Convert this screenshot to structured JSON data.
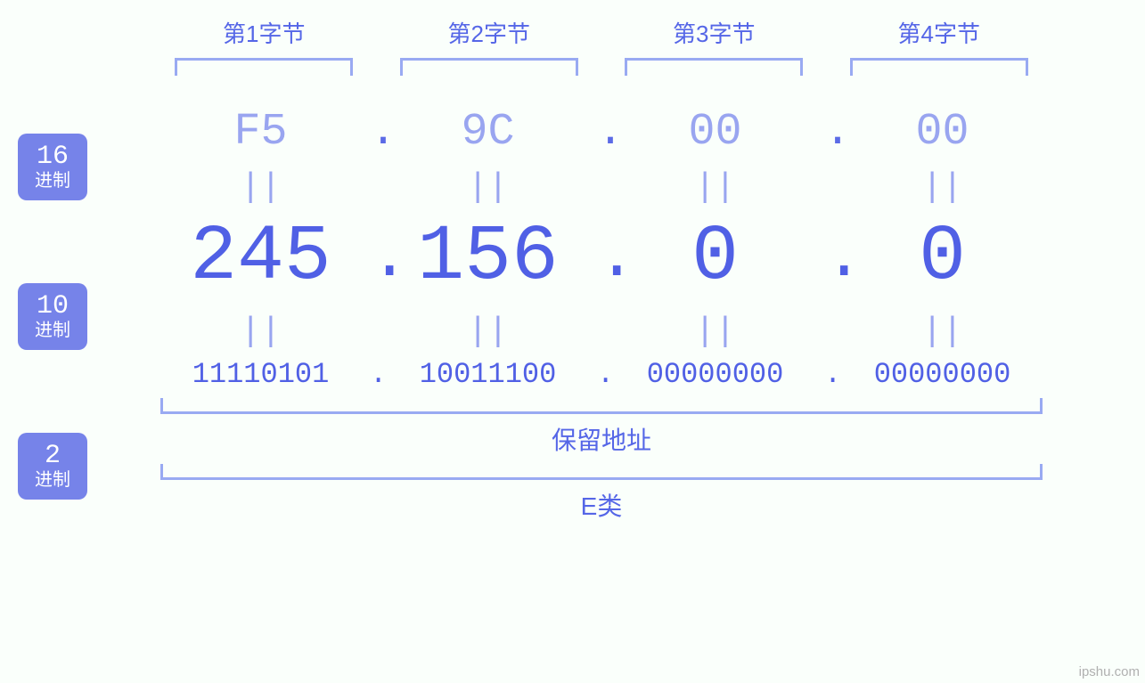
{
  "background_color": "#fafffb",
  "accent_color": "#5566e7",
  "light_accent": "#99a5f0",
  "bold_accent": "#5060e5",
  "badge_bg": "#7683e9",
  "bracket_color": "#99aaf2",
  "byte_headers": [
    "第1字节",
    "第2字节",
    "第3字节",
    "第4字节"
  ],
  "rows": {
    "hex": {
      "badge_num": "16",
      "badge_txt": "进制",
      "values": [
        "F5",
        "9C",
        "00",
        "00"
      ],
      "fontsize": 50,
      "color": "#99a5f0"
    },
    "dec": {
      "badge_num": "10",
      "badge_txt": "进制",
      "values": [
        "245",
        "156",
        "0",
        "0"
      ],
      "fontsize": 88,
      "color": "#5060e5"
    },
    "bin": {
      "badge_num": "2",
      "badge_txt": "进制",
      "values": [
        "11110101",
        "10011100",
        "00000000",
        "00000000"
      ],
      "fontsize": 32,
      "color": "#5060e5"
    }
  },
  "equals_symbol": "||",
  "separator": ".",
  "brackets_below": [
    {
      "label": "保留地址"
    },
    {
      "label": "E类"
    }
  ],
  "watermark": "ipshu.com"
}
